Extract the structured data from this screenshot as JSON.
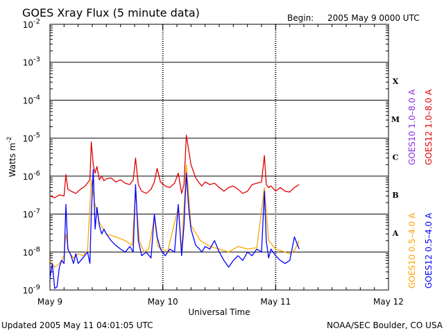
{
  "chart_data": {
    "type": "line",
    "title": "GOES Xray Flux (5 minute data)",
    "begin_label": "Begin:",
    "begin_value": "2005 May 9 0000 UTC",
    "xlabel": "Universal Time",
    "ylabel_base": "Watts m",
    "ylabel_exp": "-2",
    "y_scale": "log",
    "ylim": [
      1e-09,
      0.01
    ],
    "y_ticks": [
      {
        "mantissa": "10",
        "exp": "-2"
      },
      {
        "mantissa": "10",
        "exp": "-3"
      },
      {
        "mantissa": "10",
        "exp": "-4"
      },
      {
        "mantissa": "10",
        "exp": "-5"
      },
      {
        "mantissa": "10",
        "exp": "-6"
      },
      {
        "mantissa": "10",
        "exp": "-7"
      },
      {
        "mantissa": "10",
        "exp": "-8"
      },
      {
        "mantissa": "10",
        "exp": "-9"
      }
    ],
    "xlim_hours": [
      0,
      72
    ],
    "x_ticks": [
      "May 9",
      "May 10",
      "May 11",
      "May 12"
    ],
    "flare_classes": [
      "X",
      "M",
      "C",
      "B",
      "A"
    ],
    "grid": true,
    "legend_position": "right-vertical",
    "legend": {
      "left": [
        {
          "label": "GOES10 1.0–8.0 A",
          "color": "#8a2be2"
        },
        {
          "label": "GOES10 0.5–4.0 A",
          "color": "#ffa500"
        }
      ],
      "right": [
        {
          "label": "GOES12 1.0–8.0 A",
          "color": "#e00000"
        },
        {
          "label": "GOES12 0.5–4.0 A",
          "color": "#0000ff"
        }
      ]
    },
    "series": [
      {
        "name": "GOES12 1.0–8.0 A",
        "color": "#e00000",
        "x_hours": [
          0,
          1,
          2,
          3,
          3.4,
          3.8,
          4.5,
          5.5,
          6.5,
          7.5,
          8.5,
          8.8,
          9.2,
          9.6,
          10,
          10.5,
          11,
          11.5,
          12,
          13,
          14,
          15,
          16,
          17,
          17.7,
          18.2,
          18.8,
          19.5,
          20.5,
          21.5,
          22.2,
          22.8,
          23.5,
          24.5,
          25.5,
          26.5,
          27.3,
          28,
          28.5,
          29,
          30,
          31,
          31.8,
          32.3,
          33,
          34,
          35,
          36,
          37,
          38,
          39,
          40,
          41,
          42,
          43,
          44,
          45,
          45.6,
          46,
          46.5,
          47,
          48,
          49,
          50,
          51,
          52,
          53
        ],
        "values": [
          3e-07,
          2.7e-07,
          3.2e-07,
          3e-07,
          1.1e-06,
          4.5e-07,
          4e-07,
          3.5e-07,
          4.5e-07,
          5.5e-07,
          8e-07,
          8e-06,
          2e-06,
          1.2e-06,
          1.8e-06,
          8e-07,
          1e-06,
          7.5e-07,
          8.5e-07,
          9e-07,
          7e-07,
          8e-07,
          6.5e-07,
          6e-07,
          8e-07,
          3e-06,
          6e-07,
          4e-07,
          3.5e-07,
          4.5e-07,
          7e-07,
          1.6e-06,
          7e-07,
          5.5e-07,
          5e-07,
          6.5e-07,
          1.2e-06,
          3.5e-07,
          6e-07,
          1.2e-05,
          2e-06,
          9e-07,
          6.5e-07,
          5.5e-07,
          7e-07,
          6e-07,
          6.5e-07,
          5e-07,
          4e-07,
          5e-07,
          5.5e-07,
          4.5e-07,
          3.5e-07,
          4e-07,
          6e-07,
          6.5e-07,
          7e-07,
          3.5e-06,
          6e-07,
          5e-07,
          5.5e-07,
          4e-07,
          5e-07,
          4e-07,
          3.8e-07,
          5e-07,
          6e-07
        ]
      },
      {
        "name": "GOES10 0.5–4.0 A",
        "color": "#ffa500",
        "x_hours": [
          0,
          1,
          2,
          3,
          3.4,
          4,
          5,
          6,
          7,
          8,
          8.8,
          9.5,
          10.5,
          12,
          14,
          16,
          17.5,
          18.2,
          19,
          20,
          21,
          22.2,
          23,
          25,
          27.3,
          28,
          29,
          30,
          32,
          34,
          36,
          38,
          40,
          42,
          44,
          45.6,
          46.5,
          48,
          50,
          51,
          52,
          53
        ],
        "values": [
          6e-09,
          4e-09,
          5e-09,
          8e-09,
          3e-08,
          1e-08,
          7e-09,
          9e-09,
          8e-09,
          1.1e-08,
          8e-07,
          2e-07,
          6e-08,
          3e-08,
          2.5e-08,
          2e-08,
          1.5e-08,
          4e-07,
          2e-08,
          1e-08,
          1.2e-08,
          8e-08,
          1.4e-08,
          1e-08,
          1.5e-07,
          1e-08,
          2e-06,
          5e-08,
          2e-08,
          1.4e-08,
          1.2e-08,
          1e-08,
          1.4e-08,
          1.2e-08,
          1.3e-08,
          5e-07,
          2e-08,
          1.2e-08,
          1e-08,
          9e-09,
          1.1e-08,
          2e-08
        ]
      },
      {
        "name": "GOES12 0.5–4.0 A",
        "color": "#0000ff",
        "x_hours": [
          0,
          0.5,
          1,
          1.5,
          2,
          2.5,
          3,
          3.4,
          3.8,
          4.5,
          5,
          5.5,
          6,
          7,
          8,
          8.5,
          8.8,
          9.2,
          9.6,
          10,
          10.5,
          11,
          11.5,
          12,
          13,
          14,
          15,
          16,
          17,
          17.7,
          18.2,
          18.8,
          19.5,
          20.5,
          21.5,
          22.2,
          22.8,
          23.5,
          24.5,
          25.5,
          26.5,
          27.3,
          28,
          28.5,
          29,
          29.5,
          30,
          31,
          31.8,
          32.3,
          33,
          34,
          35,
          36,
          37,
          38,
          39,
          40,
          41,
          42,
          43,
          44,
          45,
          45.6,
          46,
          46.5,
          47,
          48,
          49,
          50,
          51,
          52,
          53
        ],
        "values": [
          2e-09,
          5e-09,
          1.1e-09,
          1.2e-09,
          4e-09,
          6e-09,
          5e-09,
          1.8e-07,
          1.2e-08,
          8e-09,
          5e-09,
          9e-09,
          5e-09,
          7e-09,
          1e-08,
          5e-09,
          1e-07,
          1.5e-06,
          4e-08,
          1.5e-07,
          5e-08,
          3e-08,
          4e-08,
          3e-08,
          2e-08,
          1.5e-08,
          1.2e-08,
          1e-08,
          1.4e-08,
          1e-08,
          6e-07,
          2e-08,
          8e-09,
          1e-08,
          7e-09,
          1e-07,
          2.5e-08,
          1.2e-08,
          8e-09,
          1.2e-08,
          1e-08,
          1.8e-07,
          8e-09,
          5e-08,
          1.2e-06,
          1.5e-07,
          4e-08,
          1.5e-08,
          1.2e-08,
          1e-08,
          1.4e-08,
          1.2e-08,
          2e-08,
          1e-08,
          6e-09,
          4e-09,
          6e-09,
          8e-09,
          6e-09,
          1e-08,
          8e-09,
          1.2e-08,
          1e-08,
          4e-07,
          2e-08,
          7e-09,
          1.2e-08,
          8e-09,
          6e-09,
          5e-09,
          6e-09,
          2.5e-08,
          1.2e-08
        ]
      }
    ]
  },
  "footer": {
    "updated": "Updated 2005 May 11 04:01:05 UTC",
    "credit": "NOAA/SEC Boulder, CO USA"
  }
}
